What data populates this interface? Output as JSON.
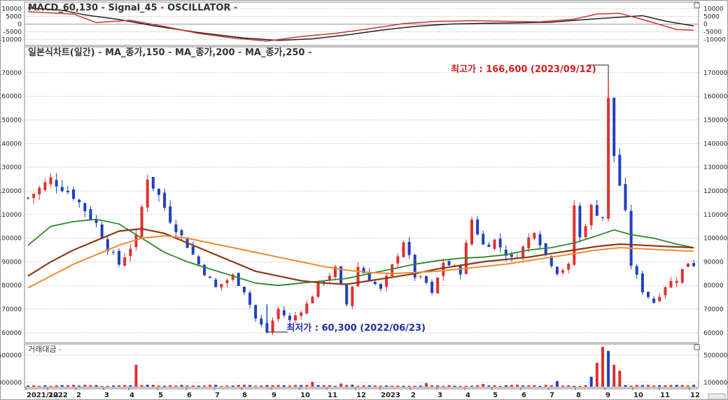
{
  "colors": {
    "up": "#e03030",
    "down": "#2040c0",
    "ma150": "#2a8a2a",
    "ma200": "#8b3a1a",
    "ma250": "#f08a30",
    "macd": "#222222",
    "signal": "#d03030",
    "grid": "#c8c8c8",
    "max_label": "#d02020",
    "min_label": "#2030a0"
  },
  "macd_panel": {
    "legend": [
      {
        "text": "MACD_60,130",
        "color": "#333333"
      },
      {
        "text": "Signal_45",
        "color": "#333333"
      },
      {
        "text": "OSCILLATOR",
        "color": "#333333"
      }
    ],
    "left_ticks": [
      "10000",
      "5000",
      "0",
      "-5000",
      "-10000"
    ],
    "right_ticks": [
      "10000",
      "5000",
      "0",
      "-5000",
      "-10000"
    ]
  },
  "price_panel": {
    "legend": [
      {
        "text": "일본식차트(일간)",
        "color": "#333333"
      },
      {
        "text": "MA_종가,150",
        "color": "#333333"
      },
      {
        "text": "MA_종가,200",
        "color": "#333333"
      },
      {
        "text": "MA_종가,250",
        "color": "#333333"
      }
    ],
    "left_ticks": [
      "170000",
      "160000",
      "150000",
      "140000",
      "130000",
      "120000",
      "110000",
      "100000",
      "90000",
      "80000",
      "70000",
      "60000"
    ],
    "right_ticks": [
      "170000",
      "160000",
      "150000",
      "140000",
      "130000",
      "120000",
      "110000",
      "100000",
      "90000",
      "80000",
      "70000",
      "60000"
    ],
    "max_label": "최고가 : 166,600 (2023/09/12)",
    "min_label": "최저가 : 60,300 (2022/06/23)"
  },
  "volume_panel": {
    "legend": [
      {
        "text": "거래대금",
        "color": "#333333"
      }
    ],
    "left_ticks": [
      "500000",
      "000000"
    ],
    "right_ticks": [
      "500000",
      "100000"
    ]
  },
  "x_axis": {
    "labels": [
      "2021/12",
      "2022",
      "2",
      "3",
      "4",
      "5",
      "6",
      "7",
      "8",
      "9",
      "10",
      "11",
      "12",
      "2023",
      "2",
      "3",
      "4",
      "5",
      "6",
      "7",
      "8",
      "9",
      "10",
      "11",
      "12"
    ]
  },
  "chart_data": {
    "type": "candlestick",
    "y_range": [
      57000,
      175000
    ],
    "max_point": {
      "date": "2023/09/12",
      "value": 166600
    },
    "min_point": {
      "date": "2022/06/23",
      "value": 60300
    },
    "price_anchors": [
      [
        0,
        117000
      ],
      [
        4,
        125000
      ],
      [
        8,
        118000
      ],
      [
        12,
        106000
      ],
      [
        14,
        96000
      ],
      [
        16,
        89000
      ],
      [
        19,
        100000
      ],
      [
        21,
        126000
      ],
      [
        23,
        118000
      ],
      [
        25,
        108000
      ],
      [
        28,
        97000
      ],
      [
        30,
        89000
      ],
      [
        33,
        79000
      ],
      [
        36,
        84000
      ],
      [
        38,
        78000
      ],
      [
        40,
        66000
      ],
      [
        42,
        60300
      ],
      [
        44,
        70000
      ],
      [
        46,
        65000
      ],
      [
        49,
        72000
      ],
      [
        51,
        80000
      ],
      [
        54,
        87000
      ],
      [
        56,
        72000
      ],
      [
        58,
        88000
      ],
      [
        60,
        83000
      ],
      [
        62,
        78000
      ],
      [
        64,
        88000
      ],
      [
        66,
        99000
      ],
      [
        68,
        84000
      ],
      [
        70,
        81000
      ],
      [
        71,
        76000
      ],
      [
        73,
        90000
      ],
      [
        76,
        86000
      ],
      [
        78,
        108000
      ],
      [
        80,
        97000
      ],
      [
        82,
        99000
      ],
      [
        85,
        91000
      ],
      [
        87,
        96000
      ],
      [
        89,
        104000
      ],
      [
        91,
        93000
      ],
      [
        93,
        86000
      ],
      [
        95,
        88000
      ],
      [
        96,
        114000
      ],
      [
        97,
        100000
      ],
      [
        99,
        113000
      ],
      [
        101,
        109000
      ],
      [
        102,
        158000
      ],
      [
        103,
        135000
      ],
      [
        105,
        110000
      ],
      [
        106,
        89000
      ],
      [
        108,
        78000
      ],
      [
        110,
        73000
      ],
      [
        112,
        80000
      ],
      [
        114,
        83000
      ],
      [
        116,
        90000
      ],
      [
        117,
        89000
      ]
    ],
    "ma150": [
      [
        0,
        97000
      ],
      [
        4,
        105000
      ],
      [
        8,
        107000
      ],
      [
        12,
        108000
      ],
      [
        16,
        106000
      ],
      [
        20,
        100000
      ],
      [
        24,
        94000
      ],
      [
        28,
        90000
      ],
      [
        32,
        87000
      ],
      [
        36,
        84000
      ],
      [
        40,
        81000
      ],
      [
        44,
        80000
      ],
      [
        48,
        81000
      ],
      [
        52,
        82000
      ],
      [
        56,
        83000
      ],
      [
        60,
        85000
      ],
      [
        64,
        87000
      ],
      [
        68,
        89000
      ],
      [
        72,
        90500
      ],
      [
        76,
        91500
      ],
      [
        80,
        92000
      ],
      [
        84,
        93000
      ],
      [
        88,
        95000
      ],
      [
        92,
        96000
      ],
      [
        96,
        98000
      ],
      [
        100,
        101000
      ],
      [
        103,
        103500
      ],
      [
        106,
        101500
      ],
      [
        110,
        100000
      ],
      [
        114,
        97500
      ],
      [
        117,
        96000
      ]
    ],
    "ma200": [
      [
        0,
        84000
      ],
      [
        4,
        90000
      ],
      [
        8,
        95000
      ],
      [
        12,
        99000
      ],
      [
        16,
        103000
      ],
      [
        20,
        104000
      ],
      [
        24,
        102000
      ],
      [
        28,
        98000
      ],
      [
        32,
        94000
      ],
      [
        36,
        90000
      ],
      [
        40,
        86000
      ],
      [
        44,
        84000
      ],
      [
        48,
        82000
      ],
      [
        52,
        81000
      ],
      [
        56,
        80500
      ],
      [
        60,
        82000
      ],
      [
        64,
        83500
      ],
      [
        68,
        85000
      ],
      [
        72,
        87000
      ],
      [
        76,
        88500
      ],
      [
        80,
        90000
      ],
      [
        84,
        91000
      ],
      [
        88,
        92000
      ],
      [
        92,
        93500
      ],
      [
        96,
        95000
      ],
      [
        100,
        96500
      ],
      [
        104,
        97500
      ],
      [
        108,
        97000
      ],
      [
        112,
        96500
      ],
      [
        117,
        96000
      ]
    ],
    "ma250": [
      [
        0,
        79000
      ],
      [
        4,
        84000
      ],
      [
        8,
        89000
      ],
      [
        12,
        93000
      ],
      [
        16,
        97000
      ],
      [
        20,
        100000
      ],
      [
        24,
        101000
      ],
      [
        28,
        100000
      ],
      [
        32,
        98000
      ],
      [
        36,
        96000
      ],
      [
        40,
        94000
      ],
      [
        44,
        92000
      ],
      [
        48,
        90000
      ],
      [
        52,
        88000
      ],
      [
        56,
        86500
      ],
      [
        60,
        85500
      ],
      [
        64,
        85000
      ],
      [
        68,
        85500
      ],
      [
        72,
        86000
      ],
      [
        76,
        87000
      ],
      [
        80,
        88000
      ],
      [
        84,
        89000
      ],
      [
        88,
        90500
      ],
      [
        92,
        92000
      ],
      [
        96,
        93500
      ],
      [
        100,
        95000
      ],
      [
        104,
        96000
      ],
      [
        108,
        95500
      ],
      [
        112,
        95000
      ],
      [
        117,
        94500
      ]
    ],
    "macd": [
      [
        0,
        10500
      ],
      [
        6,
        9000
      ],
      [
        10,
        6000
      ],
      [
        16,
        3000
      ],
      [
        22,
        -1000
      ],
      [
        30,
        -5500
      ],
      [
        38,
        -9000
      ],
      [
        44,
        -10500
      ],
      [
        50,
        -9500
      ],
      [
        56,
        -7000
      ],
      [
        62,
        -4000
      ],
      [
        68,
        -1500
      ],
      [
        74,
        0
      ],
      [
        80,
        500
      ],
      [
        86,
        800
      ],
      [
        92,
        1200
      ],
      [
        98,
        3000
      ],
      [
        104,
        4500
      ],
      [
        108,
        5500
      ],
      [
        112,
        2000
      ],
      [
        117,
        -1200
      ]
    ],
    "signal": [
      [
        0,
        8000
      ],
      [
        8,
        6500
      ],
      [
        12,
        1000
      ],
      [
        18,
        2500
      ],
      [
        24,
        -1500
      ],
      [
        30,
        -6000
      ],
      [
        36,
        -9000
      ],
      [
        42,
        -11000
      ],
      [
        48,
        -8000
      ],
      [
        54,
        -6000
      ],
      [
        60,
        -3000
      ],
      [
        66,
        300
      ],
      [
        72,
        1800
      ],
      [
        78,
        2200
      ],
      [
        84,
        1800
      ],
      [
        90,
        1500
      ],
      [
        96,
        3200
      ],
      [
        100,
        6500
      ],
      [
        104,
        7000
      ],
      [
        108,
        3000
      ],
      [
        114,
        -3500
      ],
      [
        117,
        -4000
      ]
    ],
    "volume_spikes": [
      [
        19,
        0.55
      ],
      [
        50,
        0.12
      ],
      [
        55,
        0.08
      ],
      [
        70,
        0.09
      ],
      [
        80,
        0.07
      ],
      [
        93,
        0.14
      ],
      [
        99,
        0.25
      ],
      [
        100,
        0.6
      ],
      [
        101,
        1.0
      ],
      [
        102,
        0.9
      ],
      [
        103,
        0.55
      ],
      [
        104,
        0.4
      ]
    ]
  }
}
